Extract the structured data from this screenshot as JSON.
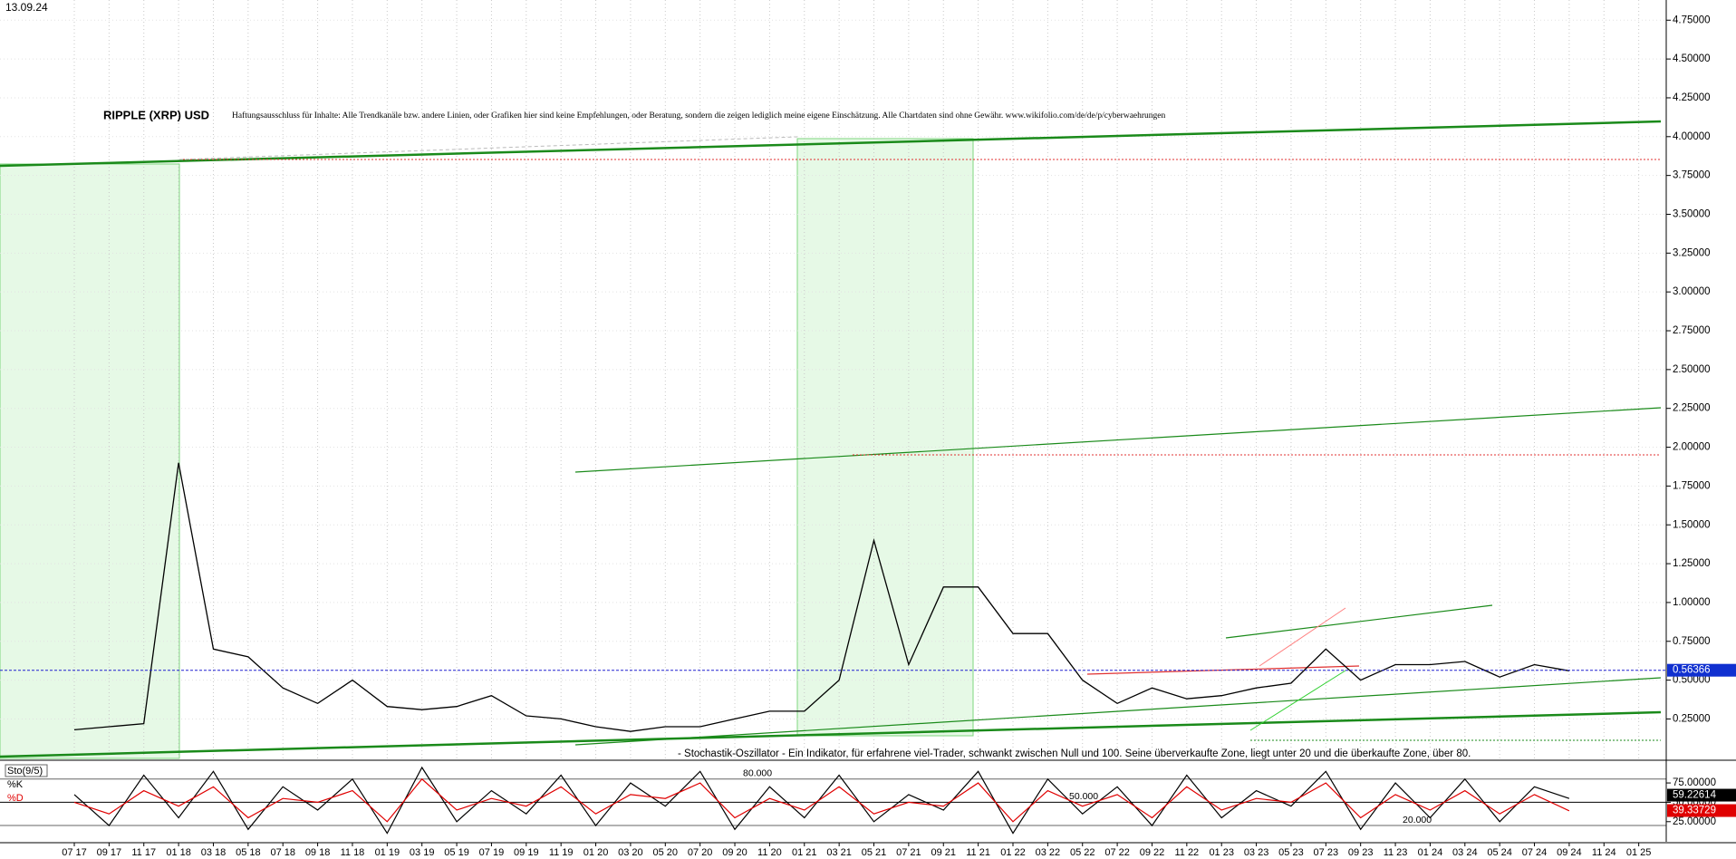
{
  "date": "13.09.24",
  "chart_data": [
    {
      "type": "line",
      "title": "RIPPLE (XRP) USD",
      "subtitle": "Haftungsausschluss für Inhalte: Alle Trendkanäle bzw. andere Linien, oder Grafiken hier sind keine Empfehlungen, oder Beratung, sondern die zeigen lediglich meine eigene Einschätzung. Alle Chartdaten sind ohne Gewähr.  www.wikifolio.com/de/de/p/cyberwaehrungen",
      "categories": [
        "07 17",
        "09 17",
        "11 17",
        "01 18",
        "03 18",
        "05 18",
        "07 18",
        "09 18",
        "11 18",
        "01 19",
        "03 19",
        "05 19",
        "07 19",
        "09 19",
        "11 19",
        "01 20",
        "03 20",
        "05 20",
        "07 20",
        "09 20",
        "11 20",
        "01 21",
        "03 21",
        "05 21",
        "07 21",
        "09 21",
        "11 21",
        "01 22",
        "03 22",
        "05 22",
        "07 22",
        "09 22",
        "11 22",
        "01 23",
        "03 23",
        "05 23",
        "07 23",
        "09 23",
        "11 23",
        "01 24",
        "03 24",
        "05 24",
        "07 24",
        "09 24",
        "11 24",
        "01 25"
      ],
      "values": [
        0.18,
        0.2,
        0.22,
        1.9,
        0.7,
        0.65,
        0.45,
        0.35,
        0.5,
        0.33,
        0.31,
        0.33,
        0.4,
        0.27,
        0.25,
        0.2,
        0.17,
        0.2,
        0.2,
        0.25,
        0.3,
        0.3,
        0.5,
        1.4,
        0.6,
        1.1,
        1.1,
        0.8,
        0.8,
        0.5,
        0.35,
        0.45,
        0.38,
        0.4,
        0.45,
        0.48,
        0.7,
        0.5,
        0.6,
        0.6,
        0.62,
        0.52,
        0.6,
        0.56,
        null,
        null
      ],
      "color": "#000000",
      "current_value": 0.56366,
      "ylim": [
        -0.01,
        4.88
      ],
      "yticks": [
        {
          "value": 0.25,
          "label": "0.25000"
        },
        {
          "value": 0.5,
          "label": "0.50000"
        },
        {
          "value": 0.75,
          "label": "0.75000"
        },
        {
          "value": 1,
          "label": "1.00000"
        },
        {
          "value": 1.25,
          "label": "1.25000"
        },
        {
          "value": 1.5,
          "label": "1.50000"
        },
        {
          "value": 1.75,
          "label": "1.75000"
        },
        {
          "value": 2,
          "label": "2.00000"
        },
        {
          "value": 2.25,
          "label": "2.25000"
        },
        {
          "value": 2.5,
          "label": "2.50000"
        },
        {
          "value": 2.75,
          "label": "2.75000"
        },
        {
          "value": 3,
          "label": "3.00000"
        },
        {
          "value": 3.25,
          "label": "3.25000"
        },
        {
          "value": 3.5,
          "label": "3.50000"
        },
        {
          "value": 3.75,
          "label": "3.75000"
        },
        {
          "value": 4,
          "label": "4.00000"
        },
        {
          "value": 4.25,
          "label": "4.25000"
        },
        {
          "value": 4.5,
          "label": "4.50000"
        },
        {
          "value": 4.75,
          "label": "4.75000"
        }
      ],
      "grid": true
    },
    {
      "type": "line",
      "title": "Sto(9/5)",
      "annotation": "- Stochastik-Oszillator - Ein Indikator, für erfahrene viel-Trader, schwankt zwischen Null und 100. Seine überverkaufte Zone, liegt unter 20 und die überkaufte Zone, über 80.",
      "series": [
        {
          "name": "%K",
          "color": "#000000",
          "current_value": 59.22614,
          "values": [
            60,
            20,
            85,
            30,
            90,
            15,
            70,
            40,
            80,
            10,
            95,
            25,
            65,
            35,
            85,
            20,
            75,
            45,
            90,
            15,
            70,
            30,
            85,
            25,
            60,
            40,
            90,
            10,
            80,
            35,
            70,
            20,
            85,
            30,
            65,
            45,
            90,
            15,
            75,
            30,
            80,
            25,
            70,
            55,
            null,
            null
          ]
        },
        {
          "name": "%D",
          "color": "#e00000",
          "current_value": 39.33729,
          "values": [
            50,
            35,
            65,
            45,
            70,
            30,
            55,
            50,
            65,
            25,
            80,
            40,
            55,
            45,
            70,
            35,
            60,
            55,
            75,
            30,
            55,
            40,
            70,
            35,
            50,
            45,
            75,
            25,
            65,
            45,
            60,
            30,
            70,
            40,
            55,
            50,
            75,
            30,
            60,
            40,
            65,
            35,
            60,
            39,
            null,
            null
          ]
        }
      ],
      "ylim": [
        -1,
        102
      ],
      "yticks": [
        {
          "value": 25,
          "label": "25.00000"
        },
        {
          "value": 50,
          "label": "50.00000"
        },
        {
          "value": 75,
          "label": "75.00000"
        }
      ],
      "levels": [
        {
          "value": 80,
          "label": "80.000"
        },
        {
          "value": 50,
          "label": "50.000"
        },
        {
          "value": 20,
          "label": "20.000"
        }
      ]
    }
  ]
}
